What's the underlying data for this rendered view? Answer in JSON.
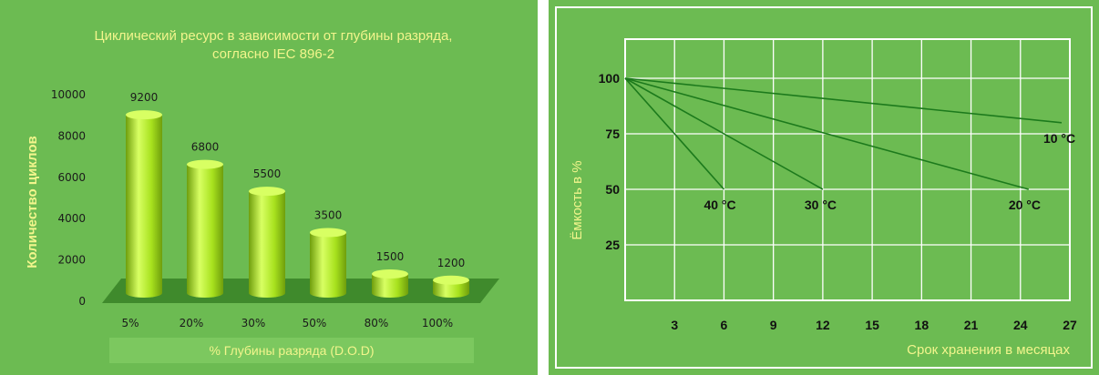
{
  "chart_data": [
    {
      "type": "bar",
      "title_lines": [
        "Циклический ресурс в зависимости от глубины разряда,",
        "согласно IEC 896-2"
      ],
      "xlabel": "% Глубины разряда (D.O.D)",
      "ylabel": "Количество циклов",
      "categories": [
        "5%",
        "20%",
        "30%",
        "50%",
        "80%",
        "100%"
      ],
      "values": [
        9200,
        6800,
        5500,
        3500,
        1500,
        1200
      ],
      "value_labels": [
        "9200",
        "6800",
        "5500",
        "3500",
        "1500",
        "1200"
      ],
      "y_ticks": [
        "0",
        "2000",
        "4000",
        "6000",
        "8000",
        "10000"
      ],
      "ylim": [
        0,
        10000
      ],
      "grid": false,
      "colors": {
        "bar": "#a8e21e",
        "bar_light": "#d8ff63",
        "bar_dark": "#6f9e0c",
        "floor": "#3f8a2c"
      }
    },
    {
      "type": "line",
      "xlabel": "Срок хранения в месяцах",
      "ylabel": "Ёмкость в %",
      "x_ticks": [
        "3",
        "6",
        "9",
        "12",
        "15",
        "18",
        "21",
        "24",
        "27"
      ],
      "y_ticks": [
        "25",
        "50",
        "75",
        "100"
      ],
      "xlim": [
        0,
        27
      ],
      "ylim": [
        0,
        100
      ],
      "grid": true,
      "series": [
        {
          "name": "10 °C",
          "x": [
            0,
            26.5
          ],
          "y": [
            100,
            80
          ]
        },
        {
          "name": "20 °C",
          "x": [
            0,
            24.5
          ],
          "y": [
            100,
            50
          ]
        },
        {
          "name": "30 °C",
          "x": [
            0,
            12
          ],
          "y": [
            100,
            50
          ]
        },
        {
          "name": "40 °C",
          "x": [
            0,
            6
          ],
          "y": [
            100,
            50
          ]
        }
      ],
      "colors": {
        "line": "#1c7a1c",
        "grid": "#ffffff",
        "frame": "#ffffff"
      }
    }
  ]
}
